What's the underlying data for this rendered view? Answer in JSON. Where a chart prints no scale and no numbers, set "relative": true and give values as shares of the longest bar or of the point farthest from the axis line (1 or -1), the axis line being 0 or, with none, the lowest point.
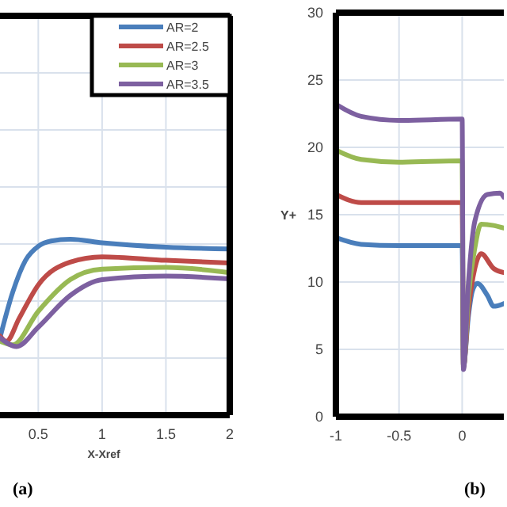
{
  "chart_data": [
    {
      "type": "line",
      "relative": true,
      "xlabel": "X-Xref",
      "xlim": [
        0.2,
        2
      ],
      "xticks": [
        0.5,
        1,
        1.5,
        2
      ],
      "grid": true,
      "legend": "top right",
      "annotations": [
        "(a)"
      ],
      "series": [
        {
          "name": "AR=2",
          "color": "#4a7ebb",
          "x": [
            0.2,
            0.3,
            0.4,
            0.5,
            0.6,
            0.75,
            1,
            1.5,
            2
          ],
          "values": [
            0.44,
            0.7,
            0.88,
            0.96,
            0.99,
            1,
            0.98,
            0.955,
            0.945
          ]
        },
        {
          "name": "AR=2.5",
          "color": "#be4b48",
          "x": [
            0.2,
            0.25,
            0.35,
            0.5,
            0.75,
            1,
            1.5,
            2
          ],
          "values": [
            0.45,
            0.42,
            0.55,
            0.74,
            0.87,
            0.9,
            0.88,
            0.865
          ]
        },
        {
          "name": "AR=3",
          "color": "#98b954",
          "x": [
            0.2,
            0.3,
            0.5,
            0.75,
            1,
            1.5,
            2
          ],
          "values": [
            0.42,
            0.4,
            0.59,
            0.77,
            0.83,
            0.84,
            0.81
          ]
        },
        {
          "name": "AR=3.5",
          "color": "#7d60a0",
          "x": [
            0.2,
            0.33,
            0.5,
            0.75,
            1,
            1.5,
            2
          ],
          "values": [
            0.44,
            0.39,
            0.5,
            0.68,
            0.77,
            0.79,
            0.775
          ]
        }
      ]
    },
    {
      "type": "line",
      "ylabel": "Y+",
      "xlim": [
        -1,
        0.33
      ],
      "xticks": [
        -1,
        -0.5,
        0
      ],
      "ylim": [
        0,
        30
      ],
      "yticks": [
        0,
        5,
        10,
        15,
        20,
        25,
        30
      ],
      "grid": true,
      "annotations": [
        "(b)"
      ],
      "series": [
        {
          "color": "#4a7ebb",
          "x": [
            -1,
            -0.8,
            -0.5,
            0,
            0.01,
            0.05,
            0.08,
            0.12,
            0.2,
            0.25,
            0.33
          ],
          "values": [
            13.3,
            12.8,
            12.7,
            12.7,
            3.8,
            7.5,
            9.3,
            9.9,
            9,
            8.2,
            8.4
          ]
        },
        {
          "color": "#be4b48",
          "x": [
            -1,
            -0.8,
            -0.5,
            0,
            0.01,
            0.05,
            0.1,
            0.15,
            0.25,
            0.33
          ],
          "values": [
            16.5,
            15.9,
            15.9,
            15.9,
            3.7,
            8,
            11,
            12.1,
            11,
            10.7
          ]
        },
        {
          "color": "#98b954",
          "x": [
            -1,
            -0.8,
            -0.5,
            0,
            0.01,
            0.05,
            0.1,
            0.15,
            0.25,
            0.33
          ],
          "values": [
            19.8,
            19.1,
            18.9,
            19,
            3.6,
            9,
            12.5,
            14.3,
            14.2,
            14
          ]
        },
        {
          "color": "#7d60a0",
          "x": [
            -1,
            -0.8,
            -0.5,
            0,
            0.01,
            0.05,
            0.1,
            0.2,
            0.3,
            0.33
          ],
          "values": [
            23.2,
            22.3,
            22,
            22.1,
            3.5,
            10,
            14.5,
            16.5,
            16.6,
            16.3
          ]
        }
      ]
    }
  ]
}
